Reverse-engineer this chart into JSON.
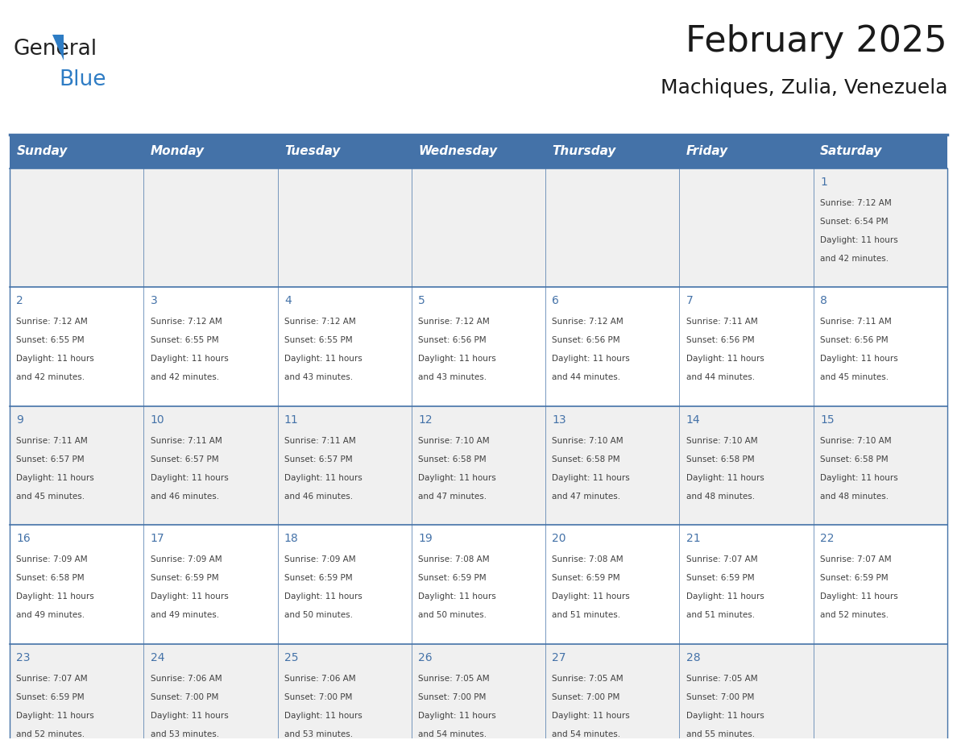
{
  "title": "February 2025",
  "subtitle": "Machiques, Zulia, Venezuela",
  "days_of_week": [
    "Sunday",
    "Monday",
    "Tuesday",
    "Wednesday",
    "Thursday",
    "Friday",
    "Saturday"
  ],
  "header_bg": "#4472a8",
  "header_text": "#ffffff",
  "cell_bg_odd": "#f0f0f0",
  "cell_bg_even": "#ffffff",
  "border_color": "#4472a8",
  "day_num_color": "#4472a8",
  "text_color": "#404040",
  "calendar_data": [
    [
      null,
      null,
      null,
      null,
      null,
      null,
      {
        "day": 1,
        "sunrise": "7:12 AM",
        "sunset": "6:54 PM",
        "daylight": "11 hours and 42 minutes."
      }
    ],
    [
      {
        "day": 2,
        "sunrise": "7:12 AM",
        "sunset": "6:55 PM",
        "daylight": "11 hours and 42 minutes."
      },
      {
        "day": 3,
        "sunrise": "7:12 AM",
        "sunset": "6:55 PM",
        "daylight": "11 hours and 42 minutes."
      },
      {
        "day": 4,
        "sunrise": "7:12 AM",
        "sunset": "6:55 PM",
        "daylight": "11 hours and 43 minutes."
      },
      {
        "day": 5,
        "sunrise": "7:12 AM",
        "sunset": "6:56 PM",
        "daylight": "11 hours and 43 minutes."
      },
      {
        "day": 6,
        "sunrise": "7:12 AM",
        "sunset": "6:56 PM",
        "daylight": "11 hours and 44 minutes."
      },
      {
        "day": 7,
        "sunrise": "7:11 AM",
        "sunset": "6:56 PM",
        "daylight": "11 hours and 44 minutes."
      },
      {
        "day": 8,
        "sunrise": "7:11 AM",
        "sunset": "6:56 PM",
        "daylight": "11 hours and 45 minutes."
      }
    ],
    [
      {
        "day": 9,
        "sunrise": "7:11 AM",
        "sunset": "6:57 PM",
        "daylight": "11 hours and 45 minutes."
      },
      {
        "day": 10,
        "sunrise": "7:11 AM",
        "sunset": "6:57 PM",
        "daylight": "11 hours and 46 minutes."
      },
      {
        "day": 11,
        "sunrise": "7:11 AM",
        "sunset": "6:57 PM",
        "daylight": "11 hours and 46 minutes."
      },
      {
        "day": 12,
        "sunrise": "7:10 AM",
        "sunset": "6:58 PM",
        "daylight": "11 hours and 47 minutes."
      },
      {
        "day": 13,
        "sunrise": "7:10 AM",
        "sunset": "6:58 PM",
        "daylight": "11 hours and 47 minutes."
      },
      {
        "day": 14,
        "sunrise": "7:10 AM",
        "sunset": "6:58 PM",
        "daylight": "11 hours and 48 minutes."
      },
      {
        "day": 15,
        "sunrise": "7:10 AM",
        "sunset": "6:58 PM",
        "daylight": "11 hours and 48 minutes."
      }
    ],
    [
      {
        "day": 16,
        "sunrise": "7:09 AM",
        "sunset": "6:58 PM",
        "daylight": "11 hours and 49 minutes."
      },
      {
        "day": 17,
        "sunrise": "7:09 AM",
        "sunset": "6:59 PM",
        "daylight": "11 hours and 49 minutes."
      },
      {
        "day": 18,
        "sunrise": "7:09 AM",
        "sunset": "6:59 PM",
        "daylight": "11 hours and 50 minutes."
      },
      {
        "day": 19,
        "sunrise": "7:08 AM",
        "sunset": "6:59 PM",
        "daylight": "11 hours and 50 minutes."
      },
      {
        "day": 20,
        "sunrise": "7:08 AM",
        "sunset": "6:59 PM",
        "daylight": "11 hours and 51 minutes."
      },
      {
        "day": 21,
        "sunrise": "7:07 AM",
        "sunset": "6:59 PM",
        "daylight": "11 hours and 51 minutes."
      },
      {
        "day": 22,
        "sunrise": "7:07 AM",
        "sunset": "6:59 PM",
        "daylight": "11 hours and 52 minutes."
      }
    ],
    [
      {
        "day": 23,
        "sunrise": "7:07 AM",
        "sunset": "6:59 PM",
        "daylight": "11 hours and 52 minutes."
      },
      {
        "day": 24,
        "sunrise": "7:06 AM",
        "sunset": "7:00 PM",
        "daylight": "11 hours and 53 minutes."
      },
      {
        "day": 25,
        "sunrise": "7:06 AM",
        "sunset": "7:00 PM",
        "daylight": "11 hours and 53 minutes."
      },
      {
        "day": 26,
        "sunrise": "7:05 AM",
        "sunset": "7:00 PM",
        "daylight": "11 hours and 54 minutes."
      },
      {
        "day": 27,
        "sunrise": "7:05 AM",
        "sunset": "7:00 PM",
        "daylight": "11 hours and 54 minutes."
      },
      {
        "day": 28,
        "sunrise": "7:05 AM",
        "sunset": "7:00 PM",
        "daylight": "11 hours and 55 minutes."
      },
      null
    ]
  ],
  "logo_text1": "General",
  "logo_text2": "Blue",
  "logo_color1": "#222222",
  "logo_color2": "#2e7cc4",
  "logo_triangle_color": "#2e7cc4",
  "title_fontsize": 32,
  "subtitle_fontsize": 18,
  "header_fontsize": 11,
  "day_num_fontsize": 10,
  "cell_text_fontsize": 7.5
}
